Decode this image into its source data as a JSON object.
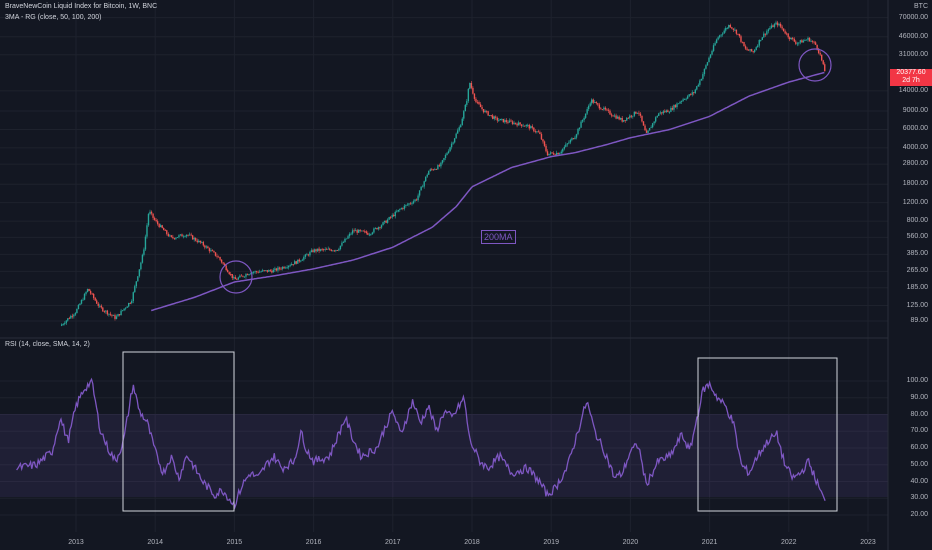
{
  "header": {
    "title": "BraveNewCoin Liquid Index for Bitcoin, 1W, BNC",
    "indicator": "3MA - RG (close, 50, 100, 200)",
    "rsi_label": "RSI (14, close, SMA, 14, 2)"
  },
  "axis": {
    "currency": "BTC",
    "price_ticks": [
      "70000.00",
      "46000.00",
      "31000.00",
      "14000.00",
      "9000.00",
      "6000.00",
      "4000.00",
      "2800.00",
      "1800.00",
      "1200.00",
      "800.00",
      "560.00",
      "385.00",
      "265.00",
      "185.00",
      "125.00",
      "89.00"
    ],
    "rsi_ticks": [
      "100.00",
      "90.00",
      "80.00",
      "70.00",
      "60.00",
      "50.00",
      "40.00",
      "30.00",
      "20.00"
    ],
    "years": [
      "2013",
      "2014",
      "2015",
      "2016",
      "2017",
      "2018",
      "2019",
      "2020",
      "2021",
      "2022",
      "2023"
    ]
  },
  "last_price": {
    "value": "20377.60",
    "countdown": "2d 7h"
  },
  "annotation": {
    "ma_label": "200MA"
  },
  "colors": {
    "up": "#26a69a",
    "down": "#ef5350",
    "ma": "#7e57c2",
    "rsi": "#7e57c2",
    "bg": "#131722",
    "last": "#f23645"
  },
  "chart_data": [
    {
      "type": "candlestick",
      "title": "BraveNewCoin Liquid Index for Bitcoin, 1W, BNC",
      "scale": "log",
      "price_key_points": [
        [
          2012.8,
          80
        ],
        [
          2013.0,
          110
        ],
        [
          2013.15,
          180
        ],
        [
          2013.3,
          120
        ],
        [
          2013.5,
          95
        ],
        [
          2013.7,
          140
        ],
        [
          2013.85,
          400
        ],
        [
          2013.92,
          1000
        ],
        [
          2014.0,
          800
        ],
        [
          2014.2,
          550
        ],
        [
          2014.4,
          600
        ],
        [
          2014.6,
          480
        ],
        [
          2014.8,
          360
        ],
        [
          2015.0,
          220
        ],
        [
          2015.2,
          260
        ],
        [
          2015.5,
          270
        ],
        [
          2015.8,
          330
        ],
        [
          2016.0,
          420
        ],
        [
          2016.3,
          430
        ],
        [
          2016.5,
          650
        ],
        [
          2016.7,
          610
        ],
        [
          2016.9,
          780
        ],
        [
          2017.1,
          1050
        ],
        [
          2017.3,
          1300
        ],
        [
          2017.45,
          2400
        ],
        [
          2017.6,
          2700
        ],
        [
          2017.75,
          4500
        ],
        [
          2017.85,
          6500
        ],
        [
          2017.93,
          11000
        ],
        [
          2017.97,
          17000
        ],
        [
          2018.05,
          11000
        ],
        [
          2018.15,
          9000
        ],
        [
          2018.3,
          7500
        ],
        [
          2018.5,
          7000
        ],
        [
          2018.7,
          6500
        ],
        [
          2018.85,
          5500
        ],
        [
          2018.95,
          3500
        ],
        [
          2019.1,
          3600
        ],
        [
          2019.3,
          5200
        ],
        [
          2019.45,
          9000
        ],
        [
          2019.5,
          11500
        ],
        [
          2019.6,
          10000
        ],
        [
          2019.75,
          8500
        ],
        [
          2019.9,
          7300
        ],
        [
          2020.1,
          9000
        ],
        [
          2020.2,
          5300
        ],
        [
          2020.35,
          8500
        ],
        [
          2020.5,
          9200
        ],
        [
          2020.65,
          11500
        ],
        [
          2020.8,
          13500
        ],
        [
          2020.9,
          19000
        ],
        [
          2021.0,
          30000
        ],
        [
          2021.1,
          45000
        ],
        [
          2021.25,
          60000
        ],
        [
          2021.35,
          50000
        ],
        [
          2021.45,
          35000
        ],
        [
          2021.55,
          33000
        ],
        [
          2021.65,
          45000
        ],
        [
          2021.75,
          55000
        ],
        [
          2021.85,
          62000
        ],
        [
          2021.9,
          57000
        ],
        [
          2022.0,
          46000
        ],
        [
          2022.1,
          40000
        ],
        [
          2022.25,
          44000
        ],
        [
          2022.35,
          38000
        ],
        [
          2022.4,
          30000
        ],
        [
          2022.45,
          22000
        ],
        [
          2022.47,
          20377
        ]
      ],
      "moving_average": {
        "name": "200MA",
        "points": [
          [
            2013.95,
            112
          ],
          [
            2014.5,
            150
          ],
          [
            2015.0,
            210
          ],
          [
            2015.5,
            240
          ],
          [
            2016.0,
            280
          ],
          [
            2016.5,
            340
          ],
          [
            2017.0,
            450
          ],
          [
            2017.5,
            700
          ],
          [
            2017.8,
            1100
          ],
          [
            2018.0,
            1700
          ],
          [
            2018.5,
            2600
          ],
          [
            2019.0,
            3300
          ],
          [
            2019.3,
            3600
          ],
          [
            2019.7,
            4300
          ],
          [
            2020.0,
            5000
          ],
          [
            2020.5,
            6000
          ],
          [
            2021.0,
            8000
          ],
          [
            2021.5,
            12500
          ],
          [
            2022.0,
            17000
          ],
          [
            2022.45,
            21000
          ]
        ]
      },
      "ylim": [
        70,
        90000
      ]
    },
    {
      "type": "line",
      "title": "RSI (14, close, SMA, 14, 2)",
      "band": [
        30,
        70
      ],
      "ylim": [
        18,
        102
      ],
      "rsi_key_points": [
        [
          2012.25,
          48
        ],
        [
          2012.5,
          50
        ],
        [
          2012.7,
          58
        ],
        [
          2012.8,
          78
        ],
        [
          2012.9,
          64
        ],
        [
          2013.0,
          85
        ],
        [
          2013.1,
          95
        ],
        [
          2013.2,
          100
        ],
        [
          2013.3,
          72
        ],
        [
          2013.4,
          60
        ],
        [
          2013.5,
          52
        ],
        [
          2013.6,
          64
        ],
        [
          2013.72,
          98
        ],
        [
          2013.8,
          82
        ],
        [
          2013.9,
          75
        ],
        [
          2014.0,
          58
        ],
        [
          2014.1,
          45
        ],
        [
          2014.2,
          55
        ],
        [
          2014.3,
          42
        ],
        [
          2014.4,
          56
        ],
        [
          2014.5,
          48
        ],
        [
          2014.6,
          40
        ],
        [
          2014.75,
          32
        ],
        [
          2014.85,
          35
        ],
        [
          2015.0,
          26
        ],
        [
          2015.1,
          38
        ],
        [
          2015.2,
          45
        ],
        [
          2015.3,
          42
        ],
        [
          2015.4,
          50
        ],
        [
          2015.5,
          55
        ],
        [
          2015.6,
          48
        ],
        [
          2015.75,
          52
        ],
        [
          2015.85,
          70
        ],
        [
          2015.9,
          60
        ],
        [
          2016.0,
          52
        ],
        [
          2016.2,
          55
        ],
        [
          2016.4,
          78
        ],
        [
          2016.5,
          65
        ],
        [
          2016.6,
          55
        ],
        [
          2016.8,
          60
        ],
        [
          2016.9,
          72
        ],
        [
          2017.0,
          82
        ],
        [
          2017.1,
          68
        ],
        [
          2017.25,
          88
        ],
        [
          2017.35,
          75
        ],
        [
          2017.45,
          85
        ],
        [
          2017.55,
          70
        ],
        [
          2017.65,
          82
        ],
        [
          2017.75,
          78
        ],
        [
          2017.9,
          90
        ],
        [
          2017.97,
          65
        ],
        [
          2018.1,
          52
        ],
        [
          2018.2,
          48
        ],
        [
          2018.35,
          55
        ],
        [
          2018.5,
          45
        ],
        [
          2018.7,
          48
        ],
        [
          2018.85,
          40
        ],
        [
          2018.95,
          32
        ],
        [
          2019.05,
          36
        ],
        [
          2019.2,
          48
        ],
        [
          2019.35,
          72
        ],
        [
          2019.45,
          88
        ],
        [
          2019.55,
          70
        ],
        [
          2019.7,
          55
        ],
        [
          2019.8,
          42
        ],
        [
          2019.9,
          45
        ],
        [
          2020.0,
          58
        ],
        [
          2020.1,
          62
        ],
        [
          2020.2,
          38
        ],
        [
          2020.35,
          52
        ],
        [
          2020.5,
          55
        ],
        [
          2020.65,
          68
        ],
        [
          2020.75,
          58
        ],
        [
          2020.85,
          80
        ],
        [
          2020.92,
          95
        ],
        [
          2021.0,
          98
        ],
        [
          2021.1,
          90
        ],
        [
          2021.2,
          85
        ],
        [
          2021.3,
          75
        ],
        [
          2021.4,
          50
        ],
        [
          2021.5,
          45
        ],
        [
          2021.6,
          55
        ],
        [
          2021.75,
          65
        ],
        [
          2021.85,
          68
        ],
        [
          2021.95,
          50
        ],
        [
          2022.05,
          42
        ],
        [
          2022.15,
          45
        ],
        [
          2022.25,
          52
        ],
        [
          2022.35,
          40
        ],
        [
          2022.42,
          32
        ],
        [
          2022.47,
          26
        ]
      ]
    }
  ]
}
